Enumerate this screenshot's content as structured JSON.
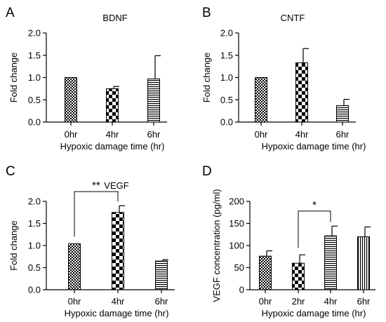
{
  "chart_data": [
    {
      "type": "bar",
      "panel": "A",
      "title": "BDNF",
      "categories": [
        "0hr",
        "4hr",
        "6hr"
      ],
      "values": [
        1.0,
        0.75,
        0.97
      ],
      "errors": [
        0,
        0.05,
        0.52
      ],
      "patterns": [
        "fine-check",
        "checker",
        "hlines"
      ],
      "xlabel": "Hypoxic damage time (hr)",
      "ylabel": "Fold change",
      "ylim": [
        0,
        2.0
      ],
      "yticks": [
        "0.0",
        "0.5",
        "1.0",
        "1.5",
        "2.0"
      ],
      "significance": []
    },
    {
      "type": "bar",
      "panel": "B",
      "title": "CNTF",
      "categories": [
        "0hr",
        "4hr",
        "6hr"
      ],
      "values": [
        1.0,
        1.33,
        0.37
      ],
      "errors": [
        0,
        0.32,
        0.14
      ],
      "patterns": [
        "fine-check",
        "checker",
        "hlines"
      ],
      "xlabel": "Hypoxic damage time (hr)",
      "ylabel": "Fold change",
      "ylim": [
        0,
        2.0
      ],
      "yticks": [
        "0.0",
        "0.5",
        "1.0",
        "1.5",
        "2.0"
      ],
      "significance": []
    },
    {
      "type": "bar",
      "panel": "C",
      "title": "VEGF",
      "categories": [
        "0hr",
        "4hr",
        "6hr"
      ],
      "values": [
        1.04,
        1.75,
        0.65
      ],
      "errors": [
        0,
        0.15,
        0.03
      ],
      "patterns": [
        "fine-check",
        "checker",
        "hlines"
      ],
      "xlabel": "Hypoxic damage time (hr)",
      "ylabel": "Fold change",
      "ylim": [
        0,
        2.0
      ],
      "yticks": [
        "0.0",
        "0.5",
        "1.0",
        "1.5",
        "2.0"
      ],
      "significance": [
        {
          "from": 0,
          "to": 1,
          "label": "**",
          "y": 2.22
        }
      ]
    },
    {
      "type": "bar",
      "panel": "D",
      "title": "",
      "categories": [
        "0hr",
        "2hr",
        "4hr",
        "6hr"
      ],
      "values": [
        76,
        60,
        122,
        120
      ],
      "errors": [
        12,
        19,
        22,
        22
      ],
      "patterns": [
        "fine-check",
        "checker",
        "hlines",
        "vlines"
      ],
      "xlabel": "Hypoxic damage time (hr)",
      "ylabel": "VEGF concentration (pg/ml)",
      "ylim": [
        0,
        200
      ],
      "yticks": [
        "0",
        "50",
        "100",
        "150",
        "200"
      ],
      "significance": [
        {
          "from": 1,
          "to": 2,
          "label": "*",
          "y": 178
        }
      ]
    }
  ]
}
